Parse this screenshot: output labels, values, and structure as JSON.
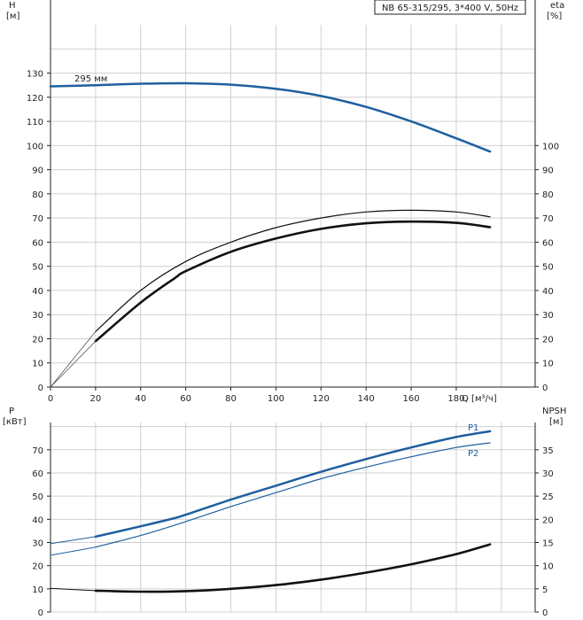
{
  "chart_data": [
    {
      "type": "line",
      "name": "head-efficiency",
      "title": "NB 65-315/295, 3*400 V, 50Hz",
      "left_axis": {
        "label_line1": "H",
        "label_line2": "[м]",
        "ticks": [
          "0",
          "10",
          "20",
          "30",
          "40",
          "50",
          "60",
          "70",
          "80",
          "90",
          "100",
          "110",
          "120",
          "130"
        ]
      },
      "right_axis": {
        "label_line1": "eta",
        "label_line2": "[%]",
        "ticks": [
          "0",
          "10",
          "20",
          "30",
          "40",
          "50",
          "60",
          "70",
          "80",
          "90",
          "100"
        ]
      },
      "x_axis": {
        "label": "Q [м³/ч]",
        "ticks": [
          "0",
          "20",
          "40",
          "60",
          "80",
          "100",
          "120",
          "140",
          "160",
          "180"
        ]
      },
      "xlim": [
        0,
        215
      ],
      "ylim": [
        0,
        150
      ],
      "grid": true,
      "annotation": "295 мм",
      "series": [
        {
          "name": "H",
          "axis": "left",
          "color": "#1f5fa0",
          "width": 2.5,
          "x": [
            0,
            20,
            40,
            60,
            80,
            100,
            120,
            140,
            160,
            180,
            195
          ],
          "y": [
            124.5,
            125,
            125.6,
            125.8,
            125.2,
            123.5,
            120.5,
            116,
            110,
            103,
            97.5
          ]
        },
        {
          "name": "H-extrapolated",
          "axis": "left",
          "color": "#1f5fa0",
          "width": 1,
          "x": [
            0,
            20
          ],
          "y": [
            124.5,
            125
          ]
        },
        {
          "name": "eta-thin",
          "axis": "right",
          "color": "#111111",
          "width": 1.2,
          "x": [
            20,
            40,
            60,
            80,
            100,
            120,
            140,
            160,
            180,
            195
          ],
          "y": [
            23,
            40,
            52,
            60,
            66,
            70,
            72.5,
            73.2,
            72.5,
            70.5
          ]
        },
        {
          "name": "eta-thick",
          "axis": "right",
          "color": "#111111",
          "width": 2.6,
          "x": [
            20,
            40,
            55,
            60,
            80,
            100,
            120,
            140,
            160,
            180,
            195
          ],
          "y": [
            19,
            35,
            45,
            48,
            56,
            61.5,
            65.5,
            67.8,
            68.5,
            68,
            66.2
          ]
        },
        {
          "name": "eta-origin-a",
          "axis": "right",
          "color": "#555555",
          "width": 0.8,
          "x": [
            0,
            20
          ],
          "y": [
            0,
            23
          ]
        },
        {
          "name": "eta-origin-b",
          "axis": "right",
          "color": "#555555",
          "width": 0.8,
          "x": [
            0,
            20
          ],
          "y": [
            0,
            19
          ]
        }
      ]
    },
    {
      "type": "line",
      "name": "power-npsh",
      "left_axis": {
        "label_line1": "P",
        "label_line2": "[кВт]",
        "ticks": [
          "0",
          "10",
          "20",
          "30",
          "40",
          "50",
          "60",
          "70"
        ]
      },
      "right_axis": {
        "label_line1": "NPSH",
        "label_line2": "[м]",
        "ticks": [
          "0",
          "5",
          "10",
          "15",
          "20",
          "25",
          "30",
          "35"
        ]
      },
      "xlim": [
        0,
        215
      ],
      "ylim": [
        0,
        80
      ],
      "grid": true,
      "series": [
        {
          "name": "P1",
          "axis": "left",
          "color": "#1f5fa0",
          "width": 2.5,
          "label": "P1",
          "x": [
            20,
            40,
            55,
            60,
            80,
            100,
            120,
            140,
            160,
            180,
            195
          ],
          "y": [
            32.5,
            37,
            40.5,
            42,
            48.5,
            54.5,
            60.5,
            66,
            71,
            75.5,
            78
          ]
        },
        {
          "name": "P2",
          "axis": "left",
          "color": "#1f5fa0",
          "width": 1.2,
          "label": "P2",
          "x": [
            20,
            40,
            60,
            80,
            100,
            120,
            140,
            160,
            180,
            195
          ],
          "y": [
            28,
            33,
            39,
            45.5,
            51.5,
            57.5,
            62.5,
            67,
            71,
            73
          ]
        },
        {
          "name": "P1-extrapolated",
          "axis": "left",
          "color": "#1f5fa0",
          "width": 1,
          "x": [
            0,
            20
          ],
          "y": [
            29.5,
            32.5
          ]
        },
        {
          "name": "P2-extrapolated",
          "axis": "left",
          "color": "#1f5fa0",
          "width": 1,
          "x": [
            0,
            20
          ],
          "y": [
            24.5,
            28
          ]
        },
        {
          "name": "NPSH",
          "axis": "right",
          "color": "#111111",
          "width": 2.6,
          "x": [
            20,
            40,
            60,
            80,
            100,
            120,
            140,
            160,
            180,
            195
          ],
          "y": [
            4.6,
            4.4,
            4.5,
            5.0,
            5.8,
            7.0,
            8.5,
            10.3,
            12.5,
            14.6
          ]
        },
        {
          "name": "NPSH-extrapolated",
          "axis": "right",
          "color": "#111111",
          "width": 1,
          "x": [
            0,
            20
          ],
          "y": [
            5.1,
            4.6
          ]
        }
      ]
    }
  ]
}
